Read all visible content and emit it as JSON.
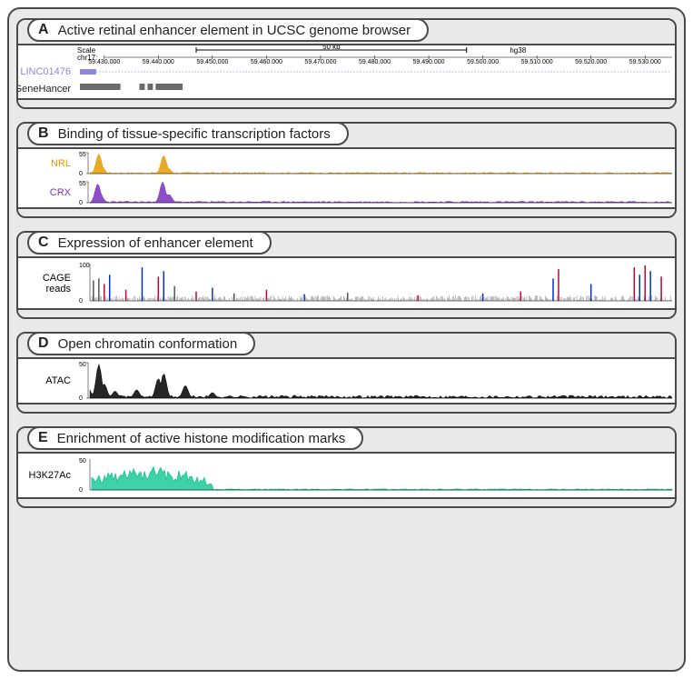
{
  "figure": {
    "genome": "hg38",
    "chrom": "chr17",
    "xstart": 59425000,
    "xend": 59535000,
    "scale_label": "50 kb",
    "coord_ticks": [
      59430000,
      59440000,
      59450000,
      59460000,
      59470000,
      59480000,
      59490000,
      59500000,
      59510000,
      59520000,
      59530000
    ]
  },
  "panels": {
    "A": {
      "letter": "A",
      "title": "Active retinal enhancer element in UCSC genome browser",
      "linc_label": "LINC01476",
      "linc_color": "#8a8ad9",
      "gh_label": "GeneHancer",
      "gh_color": "#6a6a6a",
      "linc_exons": [
        [
          59425500,
          59428500
        ]
      ],
      "linc_intron_end": 59534500,
      "genehancer_blocks": [
        [
          59425500,
          59433000
        ],
        [
          59436500,
          59437500
        ],
        [
          59438000,
          59439000
        ],
        [
          59439500,
          59444500
        ]
      ]
    },
    "B": {
      "letter": "B",
      "title": "Binding of tissue-specific transcription factors",
      "tracks": [
        {
          "name": "NRL",
          "color": "#e69a00",
          "ymax": 55,
          "peaks": [
            [
              59429000,
              52
            ],
            [
              59429500,
              20
            ],
            [
              59441000,
              48
            ],
            [
              59441800,
              15
            ]
          ],
          "noise": 0.06
        },
        {
          "name": "CRX",
          "color": "#7b2fbf",
          "ymax": 55,
          "peaks": [
            [
              59428800,
              50
            ],
            [
              59429400,
              18
            ],
            [
              59440800,
              55
            ],
            [
              59442000,
              22
            ]
          ],
          "noise": 0.07
        }
      ]
    },
    "C": {
      "letter": "C",
      "title": "Expression of enhancer element",
      "label": "CAGE reads",
      "ymax": 100,
      "colors": {
        "plus": "#cc0033",
        "minus": "#0033cc",
        "neutral": "#555555"
      },
      "spikes": [
        [
          59428000,
          55,
          "n"
        ],
        [
          59429000,
          60,
          "n"
        ],
        [
          59430000,
          45,
          "p"
        ],
        [
          59431000,
          70,
          "m"
        ],
        [
          59434000,
          30,
          "p"
        ],
        [
          59437000,
          90,
          "m"
        ],
        [
          59440000,
          65,
          "p"
        ],
        [
          59441000,
          80,
          "m"
        ],
        [
          59443000,
          40,
          "n"
        ],
        [
          59447000,
          25,
          "p"
        ],
        [
          59450000,
          35,
          "m"
        ],
        [
          59454000,
          20,
          "n"
        ],
        [
          59460000,
          30,
          "p"
        ],
        [
          59467000,
          18,
          "m"
        ],
        [
          59475000,
          22,
          "n"
        ],
        [
          59488000,
          15,
          "p"
        ],
        [
          59500000,
          20,
          "m"
        ],
        [
          59507000,
          25,
          "p"
        ],
        [
          59513000,
          60,
          "m"
        ],
        [
          59514000,
          85,
          "p"
        ],
        [
          59520000,
          45,
          "m"
        ],
        [
          59528000,
          90,
          "p"
        ],
        [
          59529000,
          70,
          "m"
        ],
        [
          59530000,
          95,
          "p"
        ],
        [
          59531000,
          80,
          "m"
        ],
        [
          59533000,
          65,
          "p"
        ]
      ]
    },
    "D": {
      "letter": "D",
      "title": "Open chromatin conformation",
      "label": "ATAC",
      "color": "#000000",
      "ymax": 50,
      "peaks": [
        [
          59427000,
          15
        ],
        [
          59429000,
          48
        ],
        [
          59430000,
          20
        ],
        [
          59432000,
          10
        ],
        [
          59436000,
          12
        ],
        [
          59440000,
          28
        ],
        [
          59441000,
          35
        ],
        [
          59445000,
          18
        ],
        [
          59450000,
          8
        ]
      ],
      "noise": 0.08
    },
    "E": {
      "letter": "E",
      "title": "Enrichment of active histone modification marks",
      "label": "H3K27Ac",
      "color": "#1fc99a",
      "ymax": 50,
      "broad": [
        [
          59425500,
          59450000
        ]
      ],
      "noise": 0.03
    }
  }
}
